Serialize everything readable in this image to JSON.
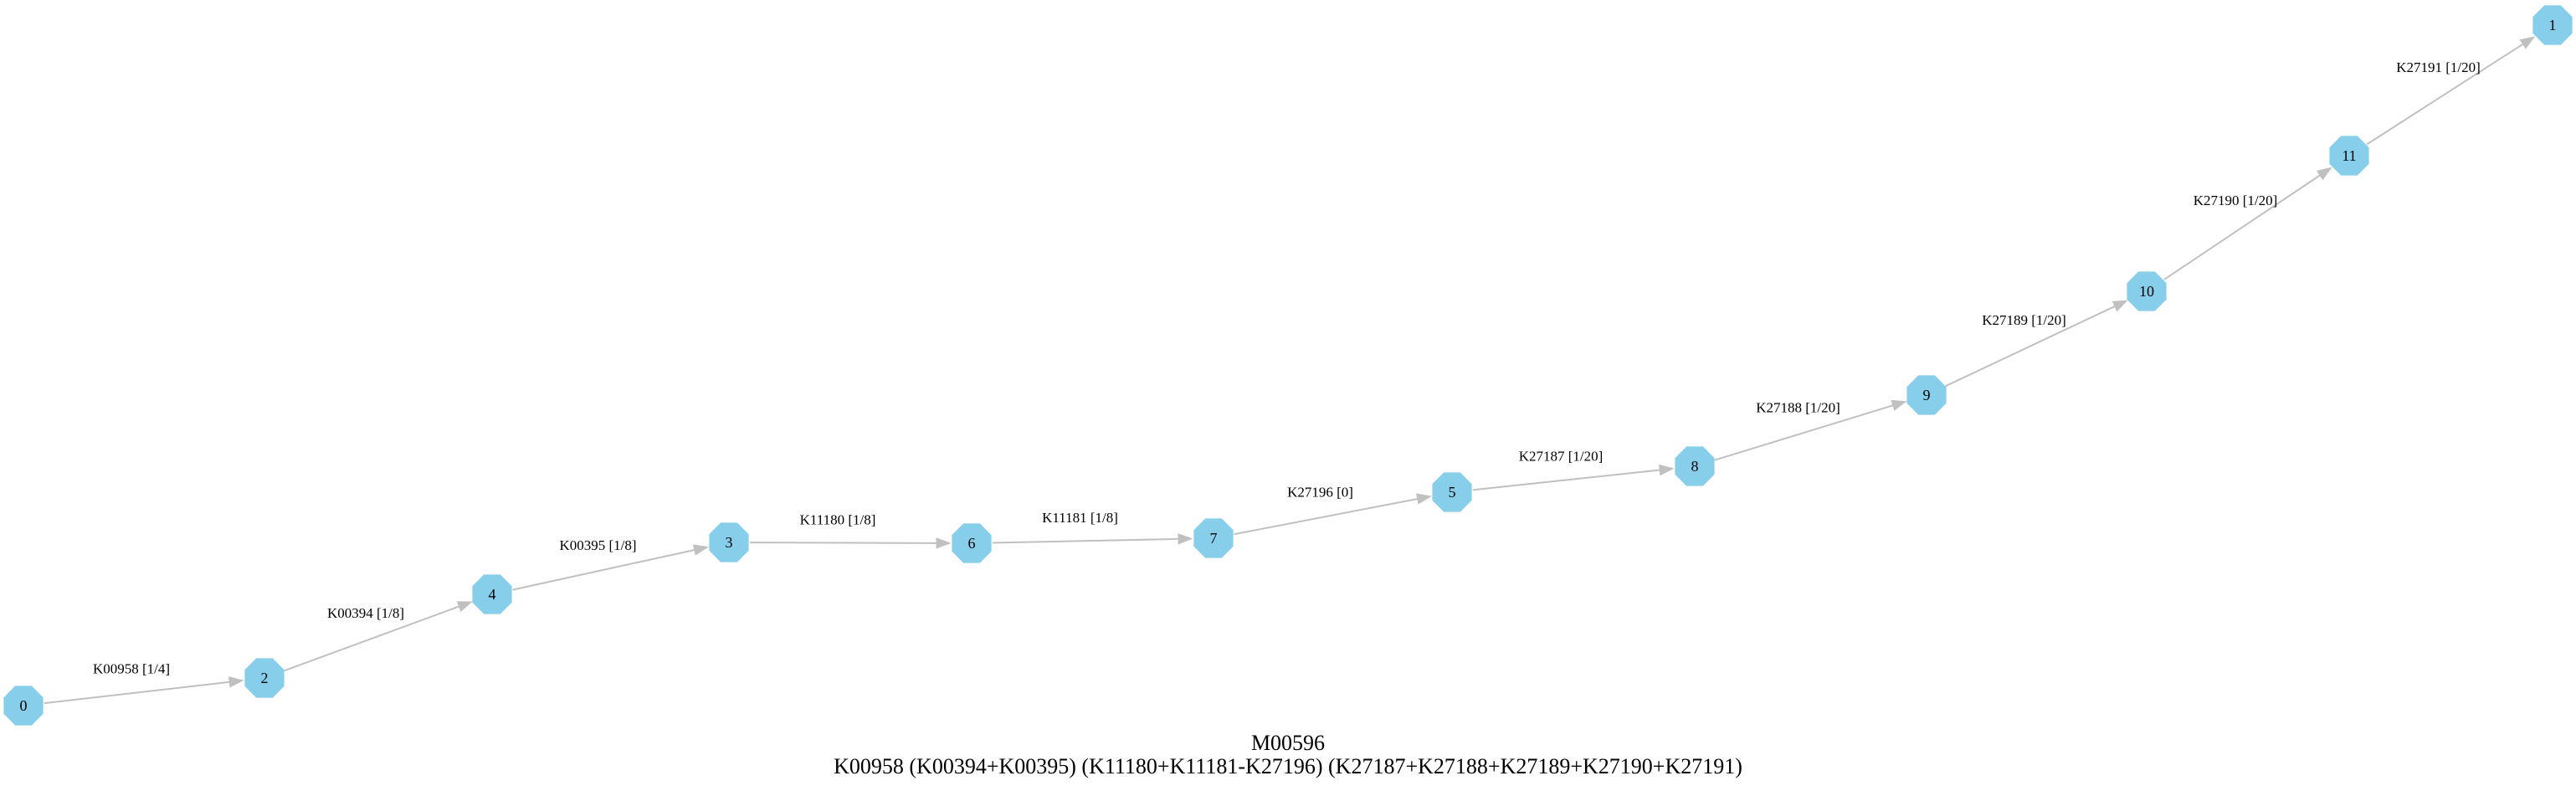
{
  "diagram": {
    "title": "M00596",
    "formula": "K00958 (K00394+K00395) (K11180+K11181-K27196) (K27187+K27188+K27189+K27190+K27191)",
    "node_color": "#87ceeb",
    "edge_color": "#c0c0c0",
    "nodes": [
      {
        "id": "0",
        "label": "0"
      },
      {
        "id": "2",
        "label": "2"
      },
      {
        "id": "4",
        "label": "4"
      },
      {
        "id": "3",
        "label": "3"
      },
      {
        "id": "6",
        "label": "6"
      },
      {
        "id": "7",
        "label": "7"
      },
      {
        "id": "5",
        "label": "5"
      },
      {
        "id": "8",
        "label": "8"
      },
      {
        "id": "9",
        "label": "9"
      },
      {
        "id": "10",
        "label": "10"
      },
      {
        "id": "11",
        "label": "11"
      },
      {
        "id": "1",
        "label": "1"
      }
    ],
    "edges": [
      {
        "from": "0",
        "to": "2",
        "label": "K00958 [1/4]"
      },
      {
        "from": "2",
        "to": "4",
        "label": "K00394 [1/8]"
      },
      {
        "from": "4",
        "to": "3",
        "label": "K00395 [1/8]"
      },
      {
        "from": "3",
        "to": "6",
        "label": "K11180 [1/8]"
      },
      {
        "from": "6",
        "to": "7",
        "label": "K11181 [1/8]"
      },
      {
        "from": "7",
        "to": "5",
        "label": "K27196 [0]"
      },
      {
        "from": "5",
        "to": "8",
        "label": "K27187 [1/20]"
      },
      {
        "from": "8",
        "to": "9",
        "label": "K27188 [1/20]"
      },
      {
        "from": "9",
        "to": "10",
        "label": "K27189 [1/20]"
      },
      {
        "from": "10",
        "to": "11",
        "label": "K27190 [1/20]"
      },
      {
        "from": "11",
        "to": "1",
        "label": "K27191 [1/20]"
      }
    ]
  }
}
